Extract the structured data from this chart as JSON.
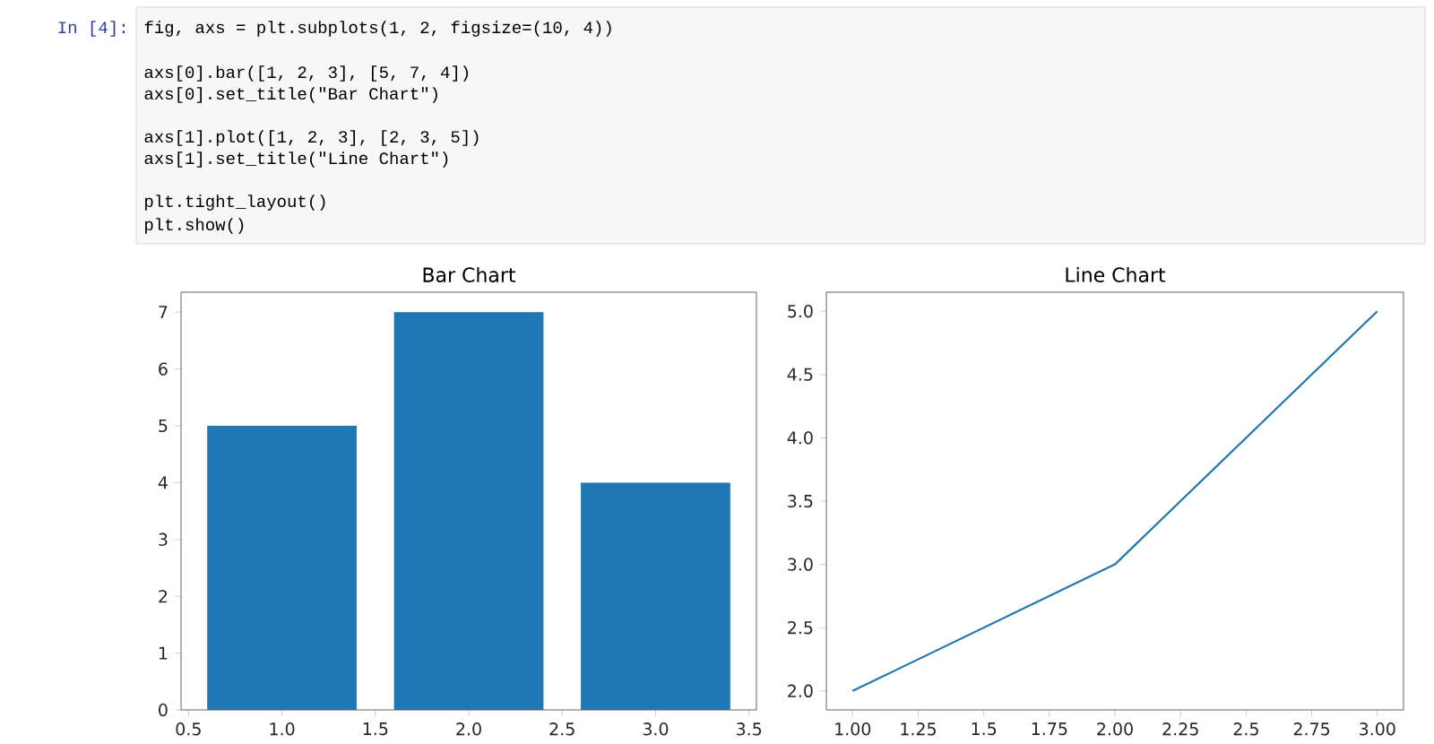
{
  "chart_data": [
    {
      "type": "other",
      "annotations": [
        "In [4]:",
        "fig, axs = plt.subplots(1, 2, figsize=(10, 4))",
        "axs[0].bar([1, 2, 3], [5, 7, 4])",
        "axs[0].set_title(\"Bar Chart\")",
        "axs[1].plot([1, 2, 3], [2, 3, 5])",
        "axs[1].set_title(\"Line Chart\")",
        "plt.tight_layout()",
        "plt.show()"
      ]
    },
    {
      "type": "bar",
      "title": "Bar Chart",
      "x": [
        1,
        2,
        3
      ],
      "values": [
        5,
        7,
        4
      ],
      "color": "#1f77b4",
      "xlim": [
        0.46,
        3.54
      ],
      "ylim": [
        0,
        7.35
      ],
      "xticks": [
        0.5,
        {
          "value": 1,
          "label": "1.0"
        },
        1.5,
        {
          "value": 2,
          "label": "2.0"
        },
        2.5,
        {
          "value": 3,
          "label": "3.0"
        },
        3.5
      ],
      "yticks": [
        0,
        1,
        2,
        3,
        4,
        5,
        6,
        7
      ]
    },
    {
      "type": "line",
      "title": "Line Chart",
      "x": [
        1,
        2,
        3
      ],
      "values": [
        2,
        3,
        5
      ],
      "color": "#1f77b4",
      "xlim": [
        0.9,
        3.1
      ],
      "ylim": [
        1.85,
        5.15
      ],
      "xticks": [
        {
          "value": 1,
          "label": "1.00"
        },
        1.25,
        1.5,
        1.75,
        {
          "value": 2,
          "label": "2.00"
        },
        2.25,
        2.5,
        2.75,
        {
          "value": 3,
          "label": "3.00"
        }
      ],
      "yticks": [
        {
          "value": 2,
          "label": "2.0"
        },
        2.5,
        {
          "value": 3,
          "label": "3.0"
        },
        3.5,
        {
          "value": 4,
          "label": "4.0"
        },
        4.5,
        {
          "value": 5,
          "label": "5.0"
        }
      ]
    }
  ]
}
